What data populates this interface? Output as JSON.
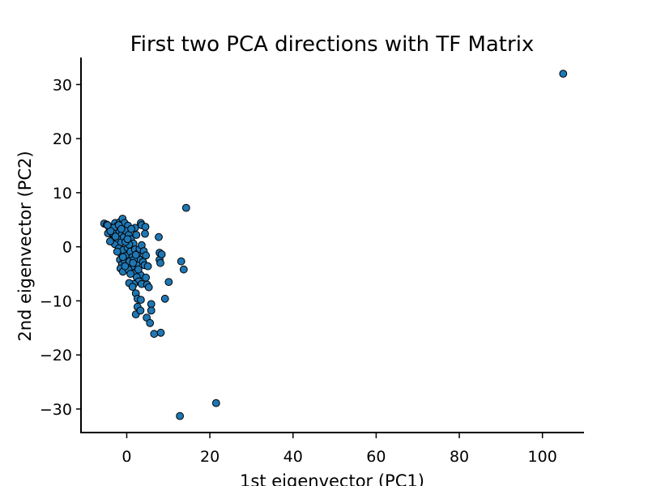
{
  "chart_data": {
    "type": "scatter",
    "title": "First two PCA directions with TF Matrix",
    "xlabel": "1st eigenvector (PC1)",
    "ylabel": "2nd eigenvector (PC2)",
    "xlim": [
      -11,
      110
    ],
    "ylim": [
      -34.5,
      35
    ],
    "xticks": [
      0,
      20,
      40,
      60,
      80,
      100
    ],
    "yticks": [
      -30,
      -20,
      -10,
      0,
      10,
      20,
      30
    ],
    "xtick_labels": [
      "0",
      "20",
      "40",
      "60",
      "80",
      "100"
    ],
    "ytick_labels": [
      "−30",
      "−20",
      "−10",
      "0",
      "10",
      "20",
      "30"
    ],
    "grid": false,
    "marker_color": "#1f77b4",
    "marker_edge_color": "#000000",
    "points": [
      [
        105,
        32
      ],
      [
        14.3,
        7.2
      ],
      [
        21.5,
        -28.9
      ],
      [
        12.8,
        -31.3
      ],
      [
        -5.4,
        4.3
      ],
      [
        -4.8,
        4.1
      ],
      [
        -4.2,
        3.6
      ],
      [
        -3.8,
        3.0
      ],
      [
        -4.5,
        2.5
      ],
      [
        -3.2,
        2.0
      ],
      [
        -2.8,
        4.4
      ],
      [
        -2.2,
        3.9
      ],
      [
        -1.6,
        4.6
      ],
      [
        -1.0,
        5.2
      ],
      [
        -0.5,
        4.4
      ],
      [
        0.3,
        3.9
      ],
      [
        -3.5,
        1.2
      ],
      [
        -2.9,
        0.5
      ],
      [
        -2.2,
        1.5
      ],
      [
        -1.8,
        2.6
      ],
      [
        -1.3,
        0.8
      ],
      [
        -0.7,
        1.8
      ],
      [
        -0.2,
        2.9
      ],
      [
        0.5,
        2.2
      ],
      [
        1.0,
        1.4
      ],
      [
        1.6,
        0.6
      ],
      [
        -1.9,
        -0.3
      ],
      [
        -1.4,
        -1.2
      ],
      [
        -0.8,
        -0.6
      ],
      [
        -0.3,
        -1.7
      ],
      [
        0.2,
        -0.2
      ],
      [
        0.9,
        -0.9
      ],
      [
        1.4,
        -1.9
      ],
      [
        2.0,
        -0.5
      ],
      [
        -1.6,
        -2.4
      ],
      [
        -1.1,
        -3.2
      ],
      [
        -0.5,
        -2.6
      ],
      [
        0.1,
        -3.4
      ],
      [
        0.7,
        -2.7
      ],
      [
        1.3,
        -3.6
      ],
      [
        -1.5,
        -4.0
      ],
      [
        -0.9,
        -4.6
      ],
      [
        0.4,
        -4.2
      ],
      [
        1.8,
        -4.9
      ],
      [
        2.4,
        -3.1
      ],
      [
        2.9,
        -2.2
      ],
      [
        2.6,
        -1.3
      ],
      [
        3.1,
        -0.4
      ],
      [
        3.6,
        0.3
      ],
      [
        4.1,
        -0.8
      ],
      [
        4.6,
        -1.6
      ],
      [
        3.9,
        -2.8
      ],
      [
        4.3,
        -3.4
      ],
      [
        5.1,
        -3.6
      ],
      [
        3.3,
        -5.2
      ],
      [
        2.4,
        -5.6
      ],
      [
        2.9,
        -6.4
      ],
      [
        1.7,
        -6.9
      ],
      [
        3.6,
        -6.9
      ],
      [
        4.6,
        -5.7
      ],
      [
        4.9,
        -7.0
      ],
      [
        5.3,
        -7.5
      ],
      [
        0.6,
        -6.7
      ],
      [
        1.4,
        -7.4
      ],
      [
        2.2,
        -8.6
      ],
      [
        2.6,
        -9.6
      ],
      [
        3.4,
        -9.8
      ],
      [
        2.6,
        -11.1
      ],
      [
        2.2,
        -12.5
      ],
      [
        3.3,
        -11.8
      ],
      [
        4.8,
        -13.1
      ],
      [
        5.6,
        -14.1
      ],
      [
        5.9,
        -10.6
      ],
      [
        5.9,
        -11.8
      ],
      [
        6.6,
        -16.1
      ],
      [
        8.2,
        -15.9
      ],
      [
        9.2,
        -9.6
      ],
      [
        10.1,
        -6.5
      ],
      [
        7.9,
        -2.4
      ],
      [
        8.1,
        -3.0
      ],
      [
        7.9,
        -1.1
      ],
      [
        8.4,
        -1.4
      ],
      [
        7.7,
        1.8
      ],
      [
        13.1,
        -2.7
      ],
      [
        13.7,
        -4.2
      ],
      [
        3.4,
        4.4
      ],
      [
        3.6,
        4.0
      ],
      [
        4.5,
        3.7
      ],
      [
        4.4,
        2.4
      ],
      [
        2.0,
        3.5
      ],
      [
        1.1,
        3.3
      ],
      [
        2.3,
        2.2
      ],
      [
        0.6,
        0.4
      ],
      [
        -0.3,
        0.9
      ],
      [
        -2.6,
        2.9
      ],
      [
        -3.1,
        3.5
      ],
      [
        -4.0,
        1.0
      ],
      [
        -3.3,
        2.5
      ],
      [
        -1.9,
        4.0
      ],
      [
        -1.3,
        3.3
      ],
      [
        0.2,
        1.4
      ],
      [
        1.7,
        -2.4
      ],
      [
        2.2,
        -1.5
      ],
      [
        2.8,
        -4.2
      ],
      [
        0.9,
        -5.0
      ],
      [
        1.5,
        -3.0
      ],
      [
        -0.4,
        -3.6
      ],
      [
        -0.9,
        -1.9
      ],
      [
        -2.3,
        -0.9
      ],
      [
        -2.7,
        1.9
      ],
      [
        -3.9,
        2.9
      ],
      [
        -4.6,
        4.0
      ]
    ]
  }
}
